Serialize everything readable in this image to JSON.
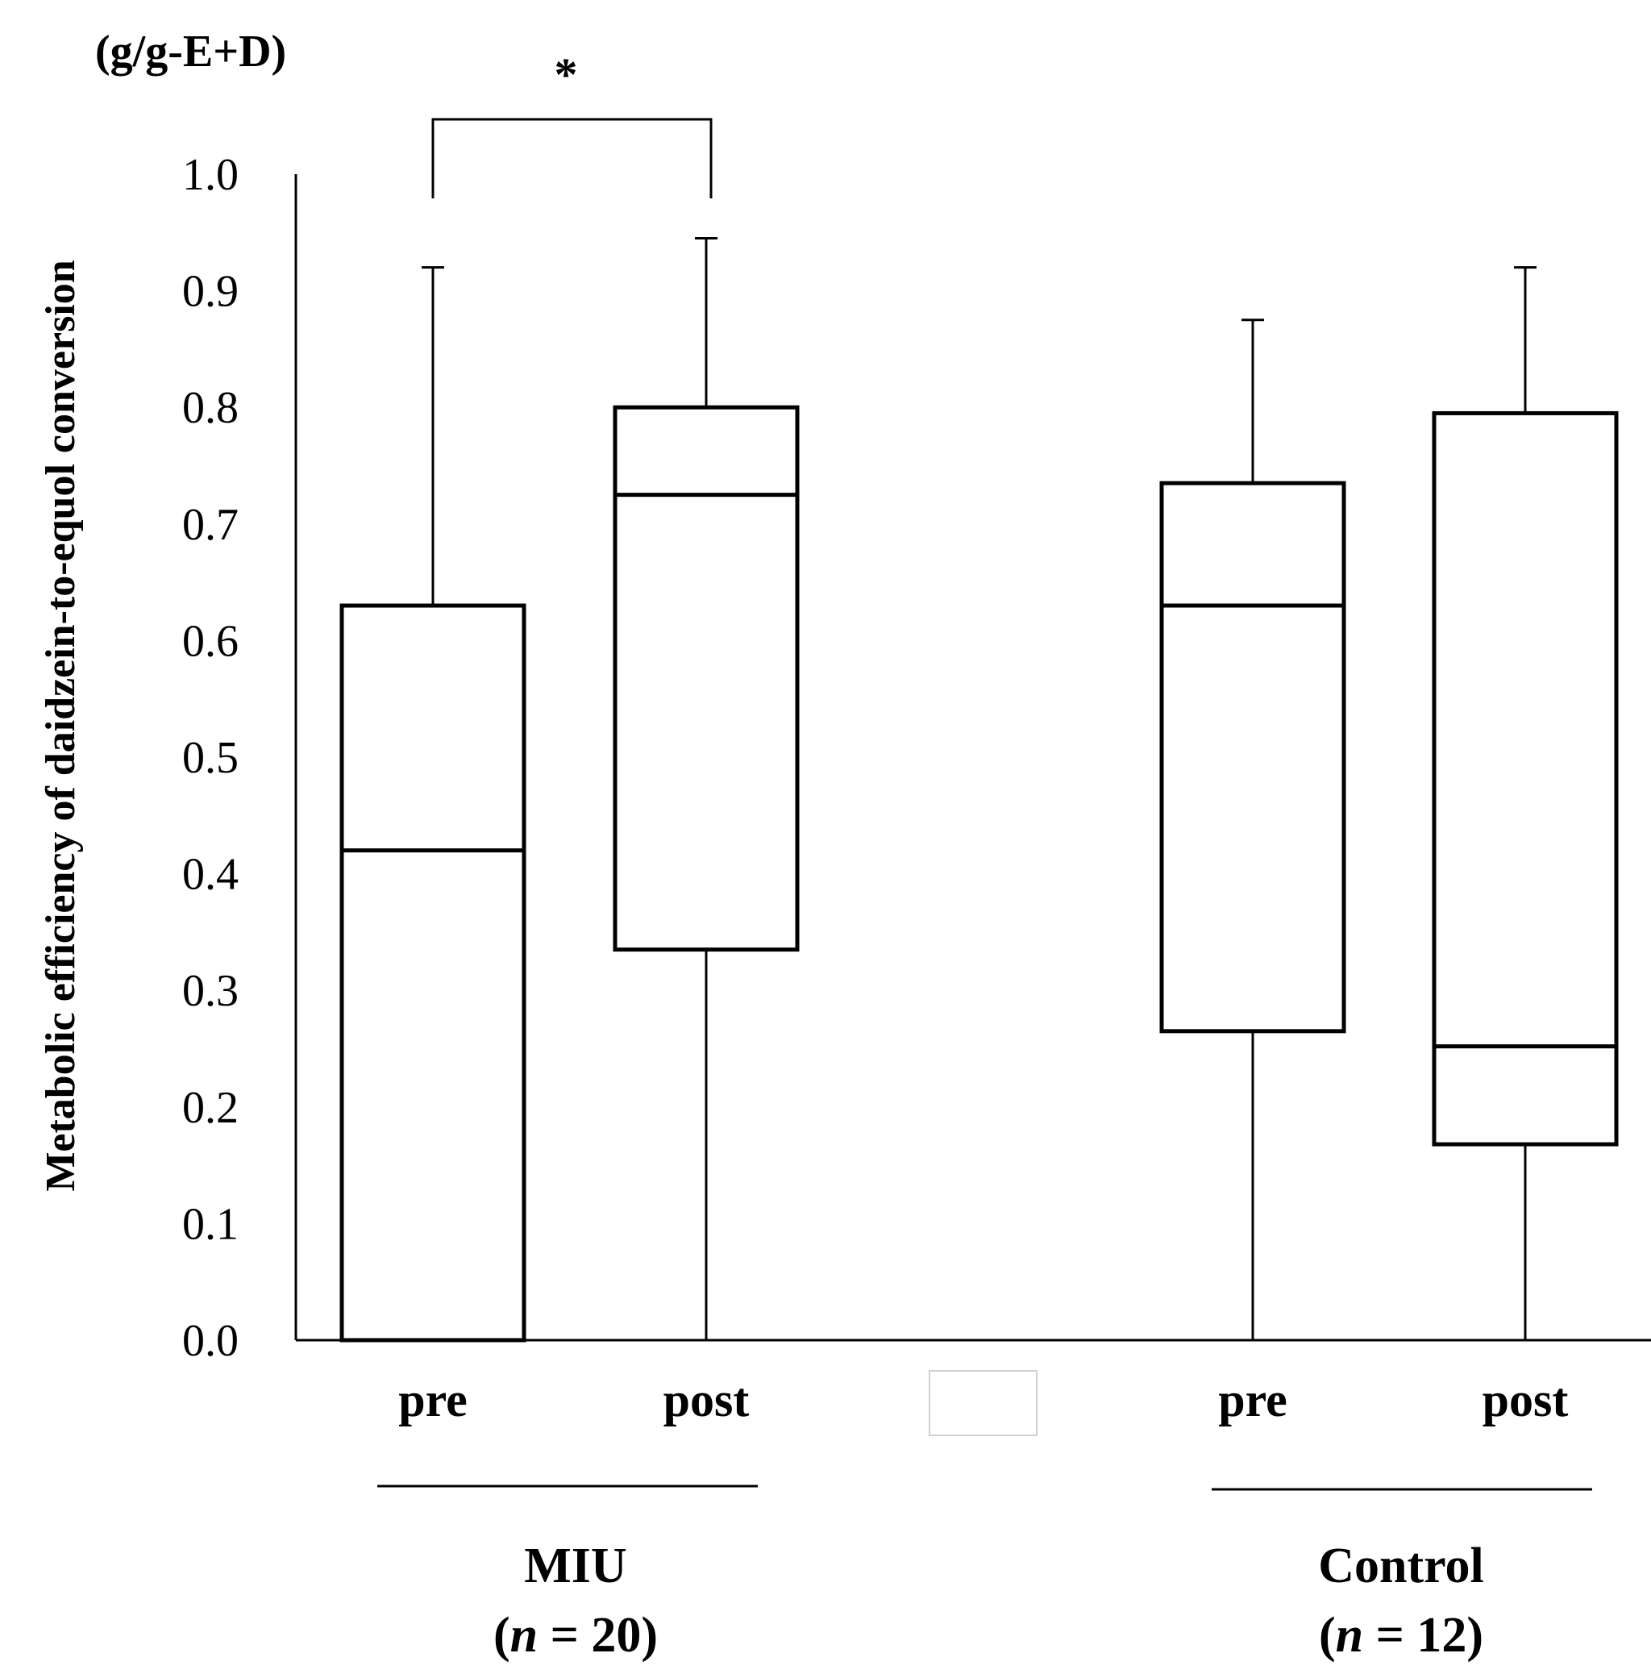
{
  "chart_data": {
    "type": "boxplot",
    "unit_label": "(g/g-E+D)",
    "ylabel": "Metabolic efficiency of daidzein-to-equol conversion",
    "ylim": [
      0,
      1.0
    ],
    "yticks": [
      "0.0",
      "0.1",
      "0.2",
      "0.3",
      "0.4",
      "0.5",
      "0.6",
      "0.7",
      "0.8",
      "0.9",
      "1.0"
    ],
    "boxes": [
      {
        "group": "MIU",
        "label": "pre",
        "min": 0.0,
        "q1": 0.0,
        "median": 0.42,
        "q3": 0.63,
        "max": 0.92
      },
      {
        "group": "MIU",
        "label": "post",
        "min": 0.0,
        "q1": 0.335,
        "median": 0.725,
        "q3": 0.8,
        "max": 0.945
      },
      {
        "group": "Control",
        "label": "pre",
        "min": 0.0,
        "q1": 0.265,
        "median": 0.63,
        "q3": 0.735,
        "max": 0.875
      },
      {
        "group": "Control",
        "label": "post",
        "min": 0.0,
        "q1": 0.168,
        "median": 0.252,
        "q3": 0.795,
        "max": 0.92
      }
    ],
    "groups": [
      {
        "name": "MIU",
        "n_prefix": "(",
        "n_symbol": "n",
        "n_suffix": " = 20)"
      },
      {
        "name": "Control",
        "n_prefix": "(",
        "n_symbol": "n",
        "n_suffix": " = 12)"
      }
    ],
    "significance": {
      "symbol": "*",
      "between": [
        "MIU pre",
        "MIU post"
      ]
    }
  }
}
